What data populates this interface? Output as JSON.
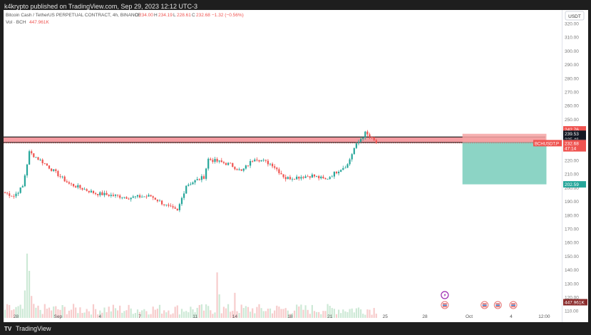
{
  "header": {
    "published": "k4krypto published on TradingView.com, Sep 29, 2023 12:12 UTC-3",
    "symbol_line": "Bitcoin Cash / TetherUS PERPETUAL CONTRACT, 4h, BINANCE",
    "ohlc": {
      "o_label": "O",
      "o": "234.00",
      "h_label": "H",
      "h": "234.19",
      "l_label": "L",
      "l": "228.61",
      "c_label": "C",
      "c": "232.68",
      "chg": "−1.32 (−0.56%)"
    },
    "vol_label": "Vol · BCH",
    "vol_value": "447.961K"
  },
  "currency_label": "USDT",
  "footer": {
    "brand": "TradingView",
    "logo": "TV"
  },
  "colors": {
    "up": "#26a69a",
    "down": "#ef5350",
    "vol_up": "#cde9d6",
    "vol_down": "#f7cccc",
    "stop_zone": "#f5a3a3",
    "target_zone": "#80cfbf",
    "resistance": "#f28b90"
  },
  "chart_data": {
    "type": "candlestick",
    "timeframe": "4h",
    "ylim": [
      105,
      330
    ],
    "y_ticks": [
      "320.00",
      "310.00",
      "300.00",
      "290.00",
      "280.00",
      "270.00",
      "260.00",
      "250.00",
      "240.00",
      "230.00",
      "220.00",
      "210.00",
      "200.00",
      "190.00",
      "180.00",
      "170.00",
      "160.00",
      "150.00",
      "140.00",
      "130.00",
      "120.00",
      "110.00"
    ],
    "x_ticks": [
      {
        "label": "28",
        "bar": 5
      },
      {
        "label": "Sep",
        "bar": 24
      },
      {
        "label": "4",
        "bar": 43
      },
      {
        "label": "7",
        "bar": 61
      },
      {
        "label": "11",
        "bar": 86
      },
      {
        "label": "14",
        "bar": 104
      },
      {
        "label": "18",
        "bar": 129
      },
      {
        "label": "21",
        "bar": 147
      },
      {
        "label": "25",
        "bar": 172
      },
      {
        "label": "28",
        "bar": 190
      },
      {
        "label": "Oct",
        "bar": 210
      },
      {
        "label": "4",
        "bar": 229
      },
      {
        "label": "12:00",
        "bar": 244
      }
    ],
    "price_labels": [
      {
        "text": "242.76",
        "price": 242.76,
        "style": "red"
      },
      {
        "text": "239.53",
        "price": 239.53,
        "style": "black"
      },
      {
        "text": "235.46",
        "price": 235.46,
        "style": "black"
      },
      {
        "text": "233.22",
        "price": 233.22,
        "style": "dark"
      },
      {
        "text": "232.68",
        "price": 232.68,
        "style": "red"
      },
      {
        "text": "47:14",
        "price": 228.9,
        "style": "red"
      },
      {
        "text": "202.59",
        "price": 202.59,
        "style": "green"
      }
    ],
    "volume_label": "447.961K",
    "symbol_tag": "BCHUSDT.P",
    "resistance_zone": {
      "low": 233.2,
      "high": 237.2
    },
    "current_price": 232.68,
    "position": {
      "start_bar": 207,
      "end_bar": 245,
      "entry": 233.22,
      "stop": 239.53,
      "target": 202.59
    },
    "event_markers": [
      {
        "bar": 199,
        "row": 1,
        "kind": "flash"
      },
      {
        "bar": 199,
        "row": 2,
        "kind": "flag"
      },
      {
        "bar": 217,
        "row": 2,
        "kind": "flag"
      },
      {
        "bar": 223,
        "row": 2,
        "kind": "flag"
      },
      {
        "bar": 230,
        "row": 2,
        "kind": "flag"
      }
    ],
    "segments": [
      {
        "bars": 5,
        "to": 194
      },
      {
        "bars": 4,
        "to": 201
      },
      {
        "bars": 3,
        "to": 226
      },
      {
        "bars": 6,
        "to": 219
      },
      {
        "bars": 12,
        "to": 203
      },
      {
        "bars": 12,
        "to": 196
      },
      {
        "bars": 15,
        "to": 193
      },
      {
        "bars": 10,
        "to": 194
      },
      {
        "bars": 8,
        "to": 186
      },
      {
        "bars": 4,
        "to": 183
      },
      {
        "bars": 4,
        "to": 202
      },
      {
        "bars": 8,
        "to": 208
      },
      {
        "bars": 2,
        "to": 221
      },
      {
        "bars": 10,
        "to": 217
      },
      {
        "bars": 5,
        "to": 212
      },
      {
        "bars": 6,
        "to": 222
      },
      {
        "bars": 8,
        "to": 217
      },
      {
        "bars": 6,
        "to": 207
      },
      {
        "bars": 12,
        "to": 209
      },
      {
        "bars": 6,
        "to": 206
      },
      {
        "bars": 6,
        "to": 213
      },
      {
        "bars": 4,
        "to": 217
      },
      {
        "bars": 3,
        "to": 229
      },
      {
        "bars": 3,
        "to": 236
      },
      {
        "bars": 2,
        "to": 240
      },
      {
        "bars": 3,
        "to": 236
      },
      {
        "bars": 2,
        "to": 232.68
      }
    ],
    "start_price": 197,
    "volume_spikes": [
      {
        "bar": 10,
        "v": 82
      },
      {
        "bar": 11,
        "v": 60
      },
      {
        "bar": 9,
        "v": 35
      },
      {
        "bar": 12,
        "v": 28
      },
      {
        "bar": 96,
        "v": 58
      },
      {
        "bar": 97,
        "v": 30
      },
      {
        "bar": 104,
        "v": 32
      },
      {
        "bar": 185,
        "v": 65
      },
      {
        "bar": 186,
        "v": 44
      },
      {
        "bar": 189,
        "v": 42
      },
      {
        "bar": 190,
        "v": 55
      },
      {
        "bar": 191,
        "v": 35
      },
      {
        "bar": 192,
        "v": 28
      },
      {
        "bar": 194,
        "v": 30
      }
    ]
  }
}
